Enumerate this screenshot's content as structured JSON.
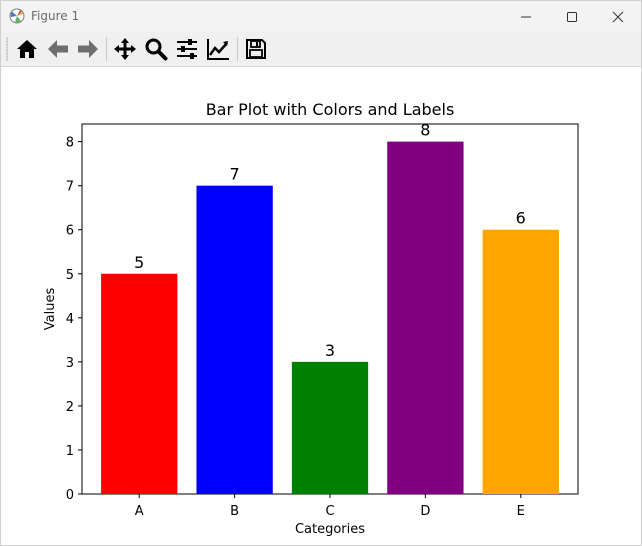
{
  "window": {
    "title": "Figure 1"
  },
  "toolbar": {
    "buttons": [
      {
        "name": "home",
        "icon": "home-icon"
      },
      {
        "name": "back",
        "icon": "arrow-left-icon"
      },
      {
        "name": "forward",
        "icon": "arrow-right-icon"
      },
      {
        "name": "pan",
        "icon": "move-icon"
      },
      {
        "name": "zoom",
        "icon": "magnifier-icon"
      },
      {
        "name": "configure-subplots",
        "icon": "sliders-icon"
      },
      {
        "name": "edit-axis",
        "icon": "trend-line-icon"
      },
      {
        "name": "save",
        "icon": "floppy-disk-icon"
      }
    ]
  },
  "chart_data": {
    "type": "bar",
    "title": "Bar Plot with Colors and Labels",
    "xlabel": "Categories",
    "ylabel": "Values",
    "categories": [
      "A",
      "B",
      "C",
      "D",
      "E"
    ],
    "values": [
      5,
      7,
      3,
      8,
      6
    ],
    "colors": [
      "#ff0000",
      "#0000ff",
      "#008000",
      "#800080",
      "#ffa500"
    ],
    "ylim": [
      0,
      8.4
    ],
    "yticks": [
      0,
      1,
      2,
      3,
      4,
      5,
      6,
      7,
      8
    ],
    "grid": false
  }
}
